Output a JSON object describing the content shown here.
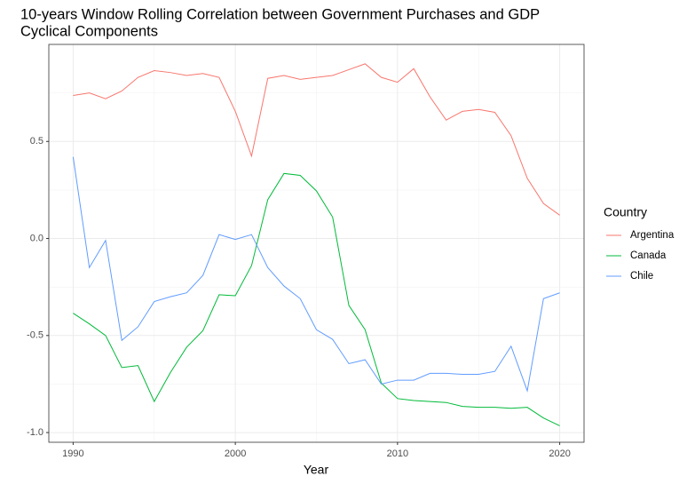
{
  "chart_data": {
    "type": "line",
    "title": [
      "10-years Window Rolling Correlation between Government Purchases and GDP",
      "Cyclical Components"
    ],
    "xlabel": "Year",
    "legend_title": "Country",
    "legend_position": "right",
    "grid": true,
    "x": [
      1990,
      1991,
      1992,
      1993,
      1994,
      1995,
      1996,
      1997,
      1998,
      1999,
      2000,
      2001,
      2002,
      2003,
      2004,
      2005,
      2006,
      2007,
      2008,
      2009,
      2010,
      2011,
      2012,
      2013,
      2014,
      2015,
      2016,
      2017,
      2018,
      2019,
      2020
    ],
    "xlim": [
      1988.5,
      2021.5
    ],
    "xticks": [
      1990,
      2000,
      2010,
      2020
    ],
    "xminor": [
      1995,
      2005,
      2015
    ],
    "ylim": [
      -1.05,
      1.0
    ],
    "yticks": [
      {
        "value": -1.0,
        "label": "-1.0"
      },
      -0.5,
      {
        "value": 0.0,
        "label": "0.0"
      },
      0.5
    ],
    "yminor": [
      -0.75,
      -0.25,
      0.25,
      0.75
    ],
    "series": [
      {
        "name": "Argentina",
        "color": "#F8766D",
        "values": [
          0.737,
          0.75,
          0.72,
          0.76,
          0.83,
          0.865,
          0.855,
          0.84,
          0.85,
          0.83,
          0.655,
          0.425,
          0.825,
          0.84,
          0.82,
          0.83,
          0.84,
          0.87,
          0.9,
          0.83,
          0.805,
          0.875,
          0.73,
          0.61,
          0.655,
          0.665,
          0.65,
          0.53,
          0.31,
          0.18,
          0.12
        ]
      },
      {
        "name": "Canada",
        "color": "#00BA38",
        "values": [
          -0.385,
          -0.44,
          -0.5,
          -0.665,
          -0.655,
          -0.84,
          -0.69,
          -0.56,
          -0.475,
          -0.29,
          -0.295,
          -0.14,
          0.2,
          0.335,
          0.325,
          0.245,
          0.11,
          -0.345,
          -0.47,
          -0.745,
          -0.825,
          -0.835,
          -0.84,
          -0.845,
          -0.865,
          -0.87,
          -0.87,
          -0.875,
          -0.87,
          -0.925,
          -0.965
        ]
      },
      {
        "name": "Chile",
        "color": "#619CFF",
        "values": [
          0.42,
          -0.15,
          -0.01,
          -0.525,
          -0.455,
          -0.325,
          -0.3,
          -0.28,
          -0.19,
          0.02,
          -0.005,
          0.02,
          -0.15,
          -0.245,
          -0.31,
          -0.47,
          -0.52,
          -0.645,
          -0.625,
          -0.75,
          -0.73,
          -0.73,
          -0.695,
          -0.695,
          -0.7,
          -0.7,
          -0.685,
          -0.555,
          -0.785,
          -0.31,
          -0.28
        ]
      }
    ]
  }
}
